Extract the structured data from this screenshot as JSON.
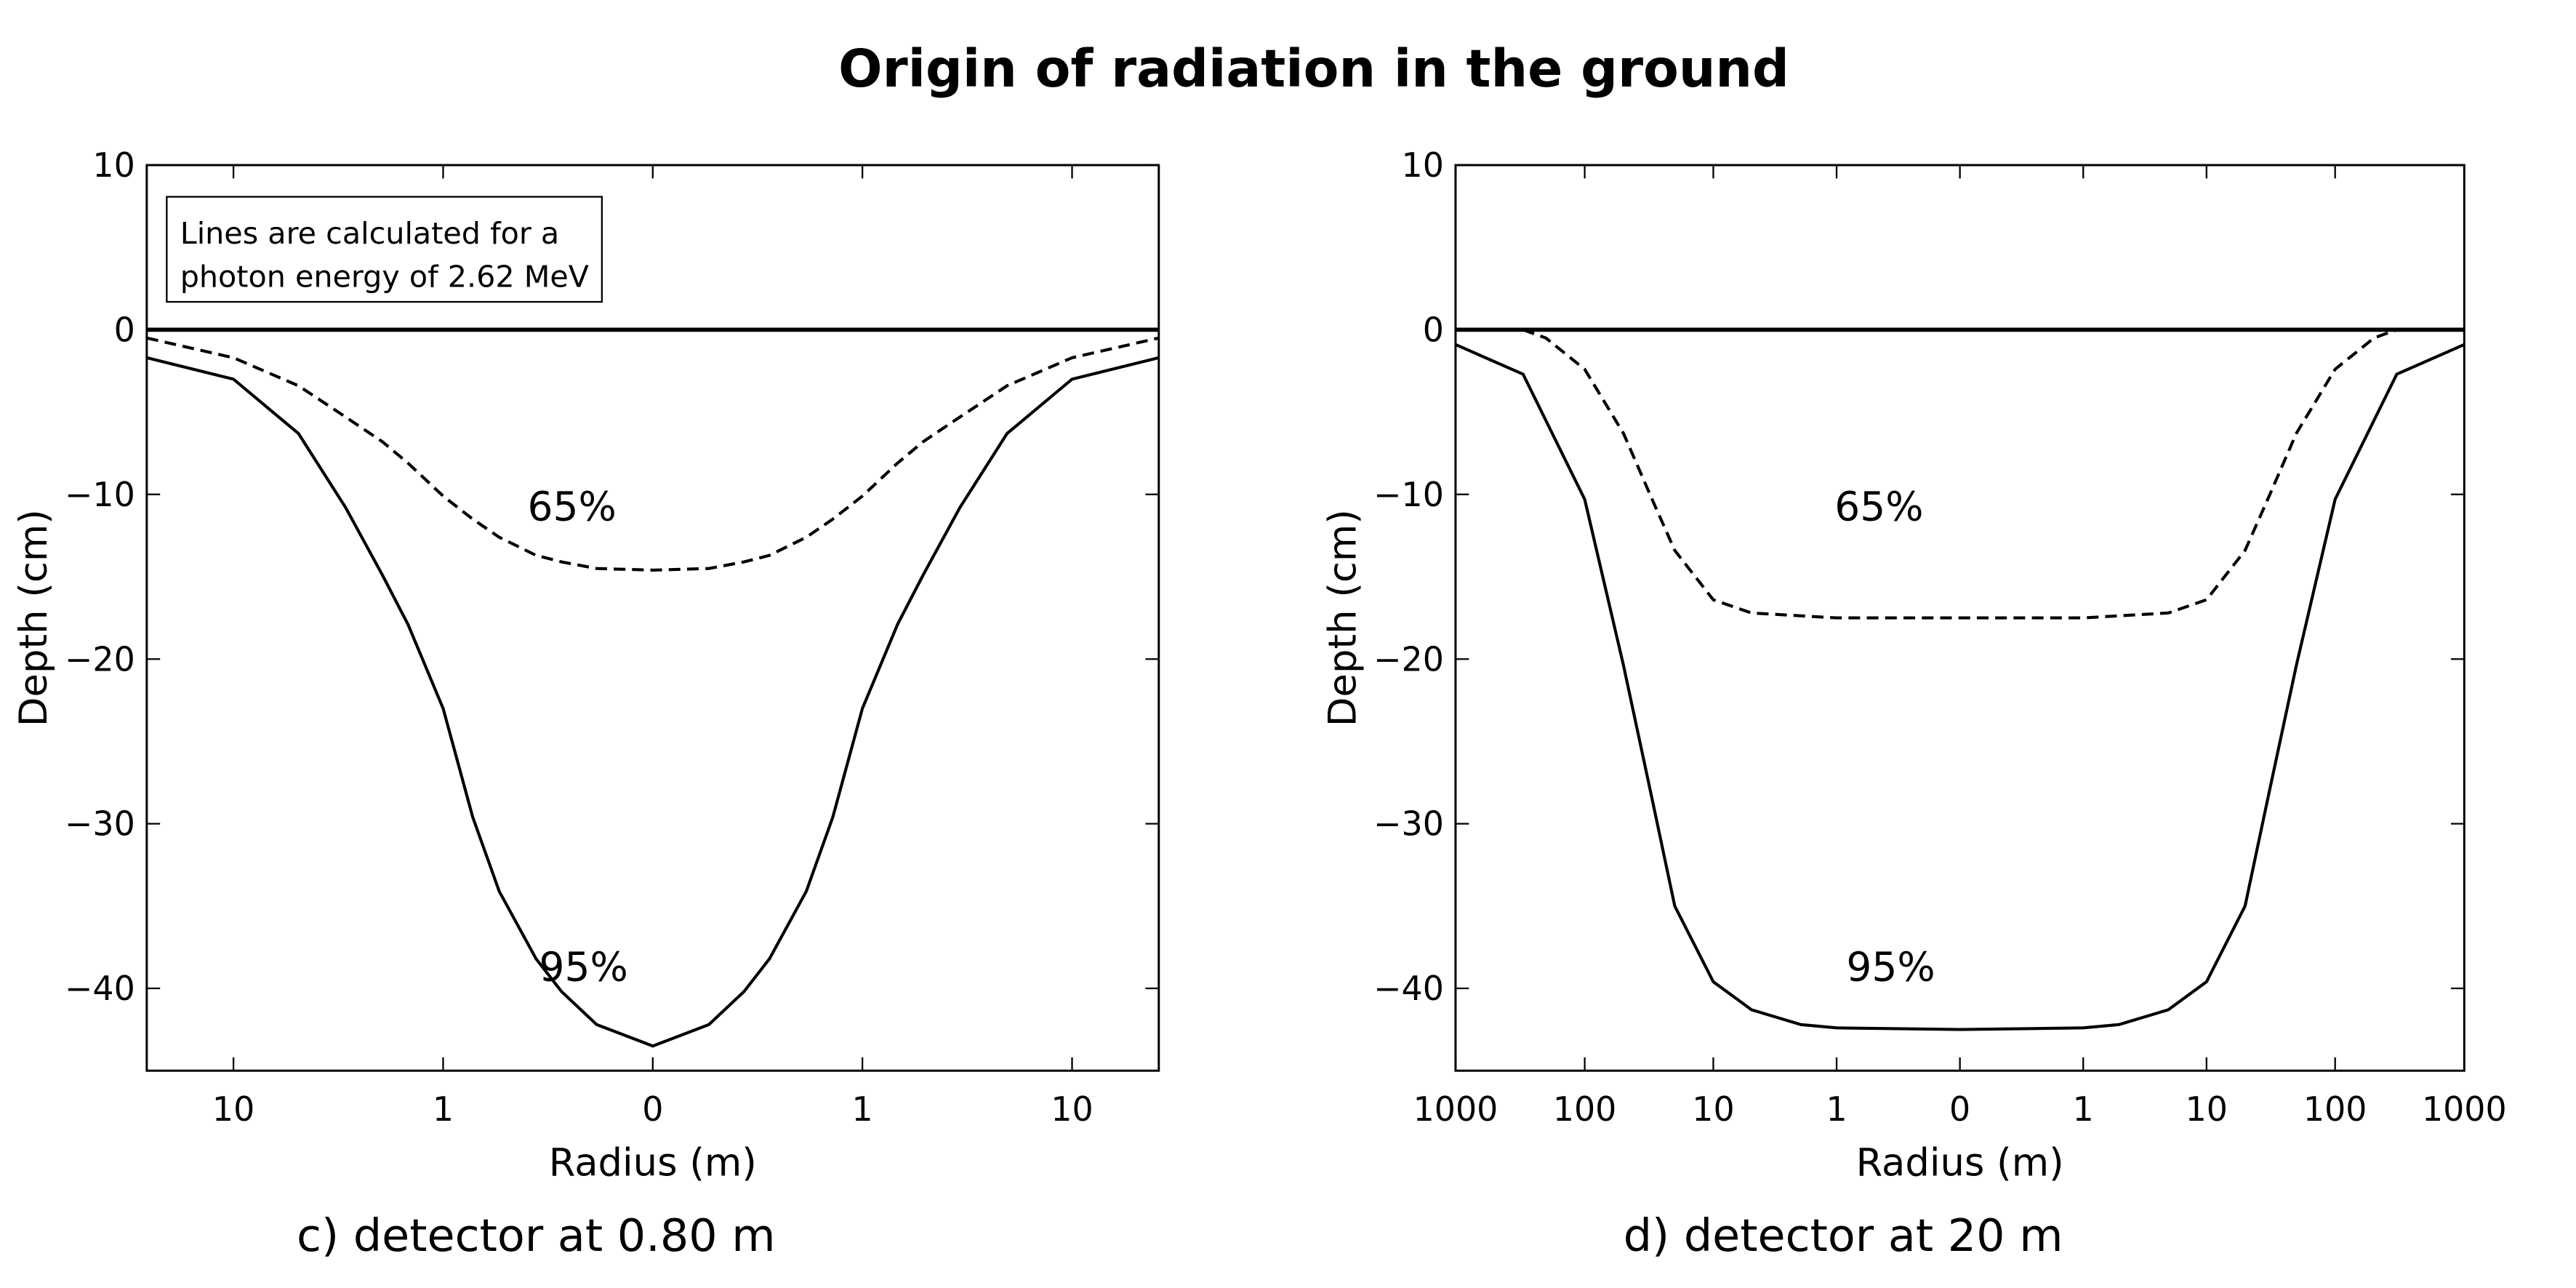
{
  "title": "Origin of radiation in the ground",
  "chart_data": [
    {
      "type": "line",
      "caption": "c) detector at 0.80 m",
      "xlabel": "Radius (m)",
      "ylabel": "Depth (cm)",
      "note": [
        "Lines are calculated for a",
        "photon energy of 2.62 MeV"
      ],
      "xscale": "symlog",
      "linthresh": 0.125,
      "xlim": [
        -25,
        25
      ],
      "ylim": [
        -45,
        10
      ],
      "xticks": [
        {
          "value": -10,
          "label": "10"
        },
        {
          "value": -1,
          "label": "1"
        },
        0,
        1,
        10
      ],
      "yticks": [
        {
          "value": -40,
          "label": "−40"
        },
        {
          "value": -30,
          "label": "−30"
        },
        {
          "value": -20,
          "label": "−20"
        },
        {
          "value": -10,
          "label": "−10"
        },
        0,
        10
      ],
      "reference_line": 0,
      "series": [
        {
          "name": "65%",
          "color": "#000000",
          "style": "dashed",
          "x": [
            -25,
            -10,
            -5,
            -3,
            -2,
            -1.5,
            -1,
            -0.7,
            -0.5,
            -0.3,
            -0.2,
            -0.1,
            0,
            0.1,
            0.2,
            0.3,
            0.5,
            0.7,
            1,
            1.5,
            2,
            3,
            5,
            10,
            25
          ],
          "values": [
            -0.5,
            -1.7,
            -3.4,
            -5.3,
            -6.8,
            -8.1,
            -10.1,
            -11.5,
            -12.6,
            -13.7,
            -14.1,
            -14.5,
            -14.6,
            -14.5,
            -14.1,
            -13.7,
            -12.6,
            -11.5,
            -10.1,
            -8.1,
            -6.8,
            -5.3,
            -3.4,
            -1.7,
            -0.5
          ]
        },
        {
          "name": "95%",
          "color": "#000000",
          "style": "solid",
          "x": [
            -25,
            -10,
            -5,
            -3,
            -2,
            -1.5,
            -1,
            -0.7,
            -0.5,
            -0.3,
            -0.2,
            -0.1,
            0,
            0.1,
            0.2,
            0.3,
            0.5,
            0.7,
            1,
            1.5,
            2,
            3,
            5,
            10,
            25
          ],
          "values": [
            -1.7,
            -3.0,
            -6.3,
            -10.8,
            -14.9,
            -17.9,
            -23,
            -29.6,
            -34.1,
            -38.2,
            -40.2,
            -42.2,
            -43.5,
            -42.2,
            -40.2,
            -38.2,
            -34.1,
            -29.6,
            -23,
            -17.9,
            -14.9,
            -10.8,
            -6.3,
            -3.0,
            -1.7
          ]
        }
      ]
    },
    {
      "type": "line",
      "caption": "d) detector at 20 m",
      "xlabel": "Radius (m)",
      "ylabel": "Depth (cm)",
      "xscale": "symlog",
      "linthresh": 0.125,
      "xlim": [
        -1000,
        1000
      ],
      "ylim": [
        -45,
        10
      ],
      "xticks": [
        {
          "value": -1000,
          "label": "1000"
        },
        {
          "value": -100,
          "label": "100"
        },
        {
          "value": -10,
          "label": "10"
        },
        {
          "value": -1,
          "label": "1"
        },
        0,
        1,
        10,
        100,
        1000
      ],
      "yticks": [
        {
          "value": -40,
          "label": "−40"
        },
        {
          "value": -30,
          "label": "−30"
        },
        {
          "value": -20,
          "label": "−20"
        },
        {
          "value": -10,
          "label": "−10"
        },
        0,
        10
      ],
      "reference_line": 0,
      "series": [
        {
          "name": "65%",
          "color": "#000000",
          "style": "dashed",
          "x": [
            -300,
            -200,
            -100,
            -50,
            -30,
            -20,
            -10,
            -5,
            -1,
            0,
            1,
            5,
            10,
            20,
            30,
            50,
            100,
            200,
            300
          ],
          "values": [
            0,
            -0.5,
            -2.4,
            -6.3,
            -10.3,
            -13.4,
            -16.4,
            -17.2,
            -17.5,
            -17.5,
            -17.5,
            -17.2,
            -16.4,
            -13.4,
            -10.3,
            -6.3,
            -2.4,
            -0.5,
            0
          ]
        },
        {
          "name": "95%",
          "color": "#000000",
          "style": "solid",
          "x": [
            -1000,
            -300,
            -100,
            -50,
            -30,
            -20,
            -10,
            -5,
            -2,
            -1,
            0,
            1,
            2,
            5,
            10,
            20,
            30,
            50,
            100,
            300,
            1000
          ],
          "values": [
            -0.9,
            -2.7,
            -10.3,
            -20.4,
            -28.5,
            -35,
            -39.6,
            -41.3,
            -42.2,
            -42.4,
            -42.5,
            -42.4,
            -42.2,
            -41.3,
            -39.6,
            -35,
            -28.5,
            -20.4,
            -10.3,
            -2.7,
            -0.9
          ]
        }
      ]
    }
  ]
}
